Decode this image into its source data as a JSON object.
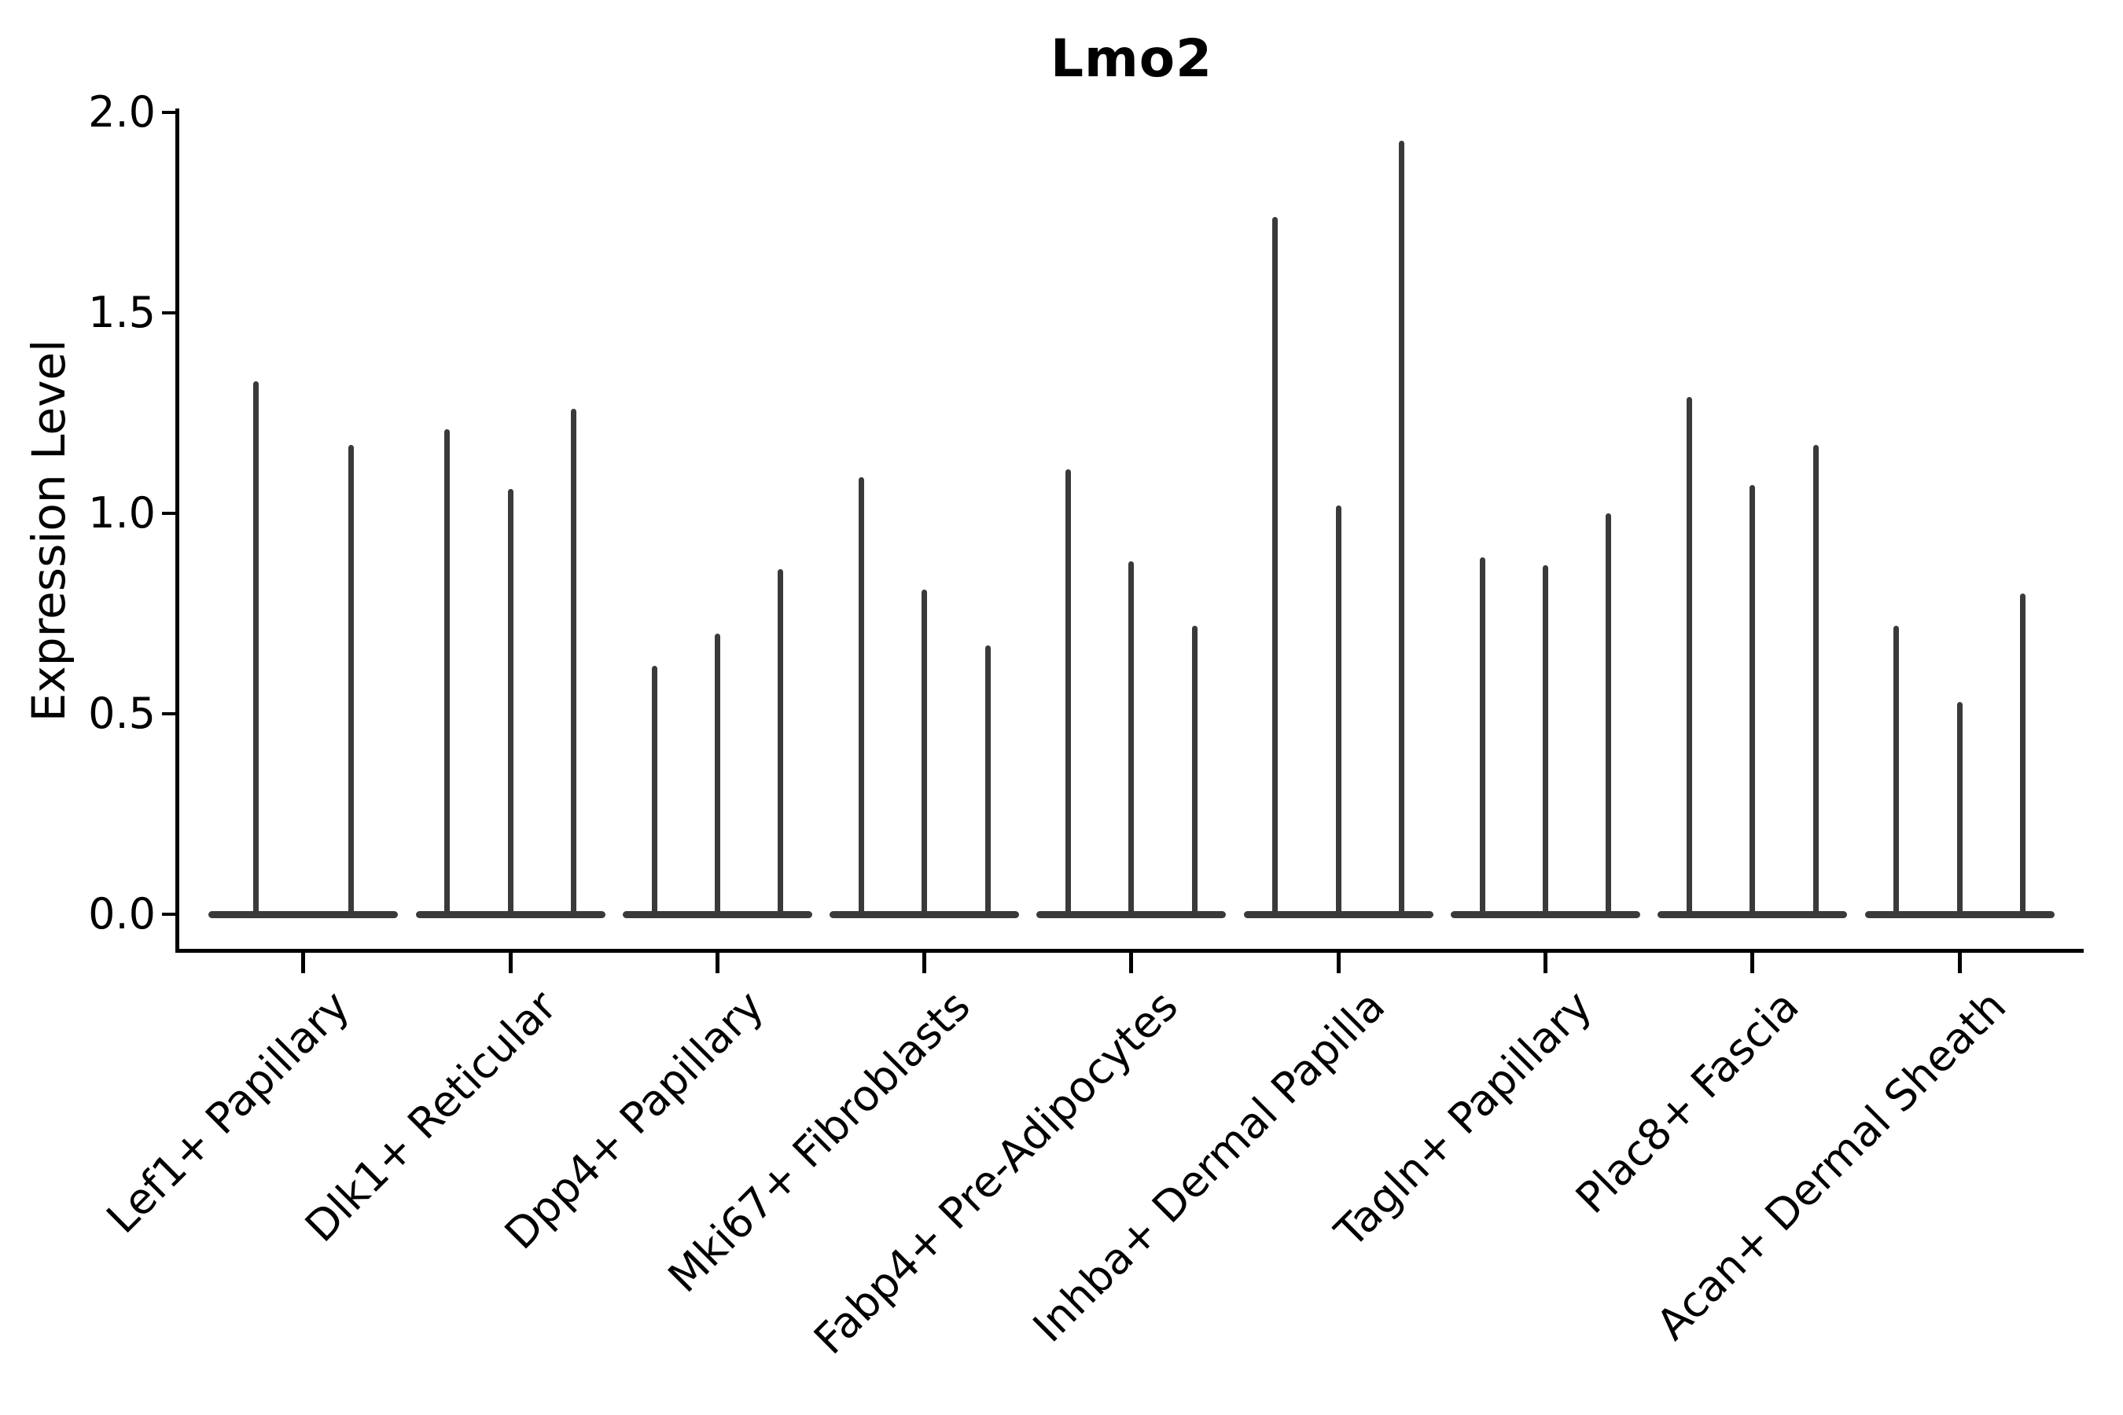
{
  "chart_data": {
    "type": "violin",
    "title": "Lmo2",
    "ylabel": "Expression Level",
    "xlabel": "",
    "categories": [
      "Lef1+ Papillary",
      "Dlk1+ Reticular",
      "Dpp4+ Papillary",
      "Mki67+ Fibroblasts",
      "Fabp4+ Pre-Adipocytes",
      "Inhba+ Dermal Papilla",
      "Tagln+ Papillary",
      "Plac8+ Fascia",
      "Acan+ Dermal Sheath"
    ],
    "series": [
      {
        "category": "Lef1+ Papillary",
        "spike_max_expression": [
          1.33,
          1.17
        ]
      },
      {
        "category": "Dlk1+ Reticular",
        "spike_max_expression": [
          1.21,
          1.06,
          1.26
        ]
      },
      {
        "category": "Dpp4+ Papillary",
        "spike_max_expression": [
          0.62,
          0.7,
          0.86
        ]
      },
      {
        "category": "Mki67+ Fibroblasts",
        "spike_max_expression": [
          1.09,
          0.81,
          0.67
        ]
      },
      {
        "category": "Fabp4+ Pre-Adipocytes",
        "spike_max_expression": [
          1.11,
          0.88,
          0.72
        ]
      },
      {
        "category": "Inhba+ Dermal Papilla",
        "spike_max_expression": [
          1.74,
          1.02,
          1.93
        ]
      },
      {
        "category": "Tagln+ Papillary",
        "spike_max_expression": [
          0.89,
          0.87,
          1.0
        ]
      },
      {
        "category": "Plac8+ Fascia",
        "spike_max_expression": [
          1.29,
          1.07,
          1.17
        ]
      },
      {
        "category": "Acan+ Dermal Sheath",
        "spike_max_expression": [
          0.72,
          0.53,
          0.8
        ]
      }
    ],
    "violin_style_note": "each violin is collapsed: wide flat density bar at 0 with a thin spike rising to its max expression value",
    "yticks": [
      "0.0",
      "0.5",
      "1.0",
      "1.5",
      "2.0"
    ],
    "ytick_values": [
      0.0,
      0.5,
      1.0,
      1.5,
      2.0
    ],
    "ylim": [
      0.0,
      2.0
    ],
    "x_tick_rotation": 45,
    "grid": false,
    "legend": "none"
  },
  "colors": {
    "violin": "#3a3a3a",
    "axis": "#000000",
    "text": "#000000",
    "background": "#ffffff"
  }
}
